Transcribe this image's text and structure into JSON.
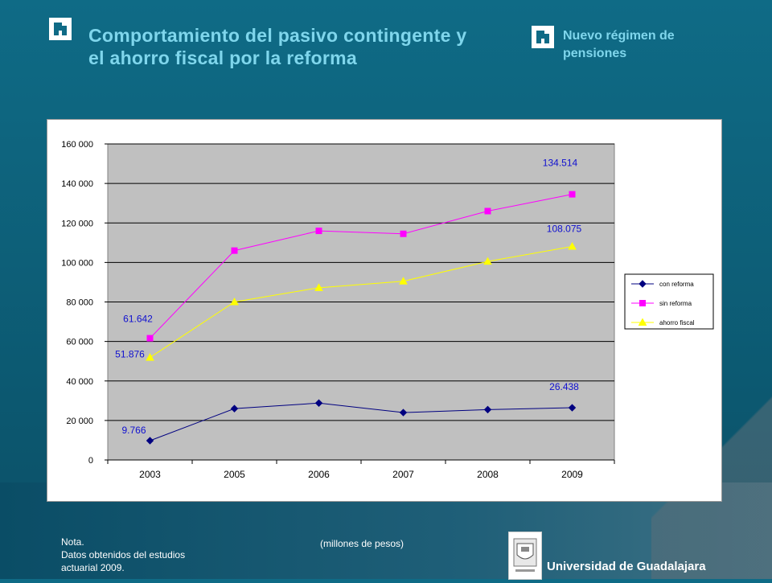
{
  "header": {
    "title": "Comportamiento del pasivo contingente y el ahorro  fiscal por la reforma",
    "subtitle": "Nuevo régimen de pensiones"
  },
  "footer": {
    "note_line1": "Nota.",
    "note_line2": "Datos obtenidos del estudios",
    "note_line3": "actuarial 2009.",
    "units": "(millones de pesos)",
    "university": "Universidad de Guadalajara"
  },
  "chart_data": {
    "type": "line",
    "categories": [
      "2003",
      "2005",
      "2006",
      "2007",
      "2008",
      "2009"
    ],
    "ylim": [
      0,
      160000
    ],
    "yticks": [
      "0",
      "20 000",
      "40 000",
      "60 000",
      "80 000",
      "100 000",
      "120 000",
      "140 000",
      "160 000"
    ],
    "grid": true,
    "legend_position": "right",
    "series": [
      {
        "name": "con reforma",
        "color": "#000080",
        "marker": "diamond",
        "values": [
          9766,
          26000,
          28800,
          24000,
          25500,
          26438
        ]
      },
      {
        "name": "sin reforma",
        "color": "#ff00ff",
        "marker": "square",
        "values": [
          61642,
          106000,
          116000,
          114500,
          126000,
          134514
        ]
      },
      {
        "name": "ahorro fiscal",
        "color": "#ffff00",
        "marker": "triangle",
        "values": [
          51876,
          80000,
          87200,
          90500,
          100500,
          108075
        ]
      }
    ],
    "annotations": [
      {
        "series": 0,
        "index": 0,
        "text": "9.766"
      },
      {
        "series": 0,
        "index": 5,
        "text": "26.438"
      },
      {
        "series": 1,
        "index": 0,
        "text": "61.642"
      },
      {
        "series": 1,
        "index": 5,
        "text": "134.514"
      },
      {
        "series": 2,
        "index": 0,
        "text": "51.876"
      },
      {
        "series": 2,
        "index": 5,
        "text": "108.075"
      }
    ]
  }
}
